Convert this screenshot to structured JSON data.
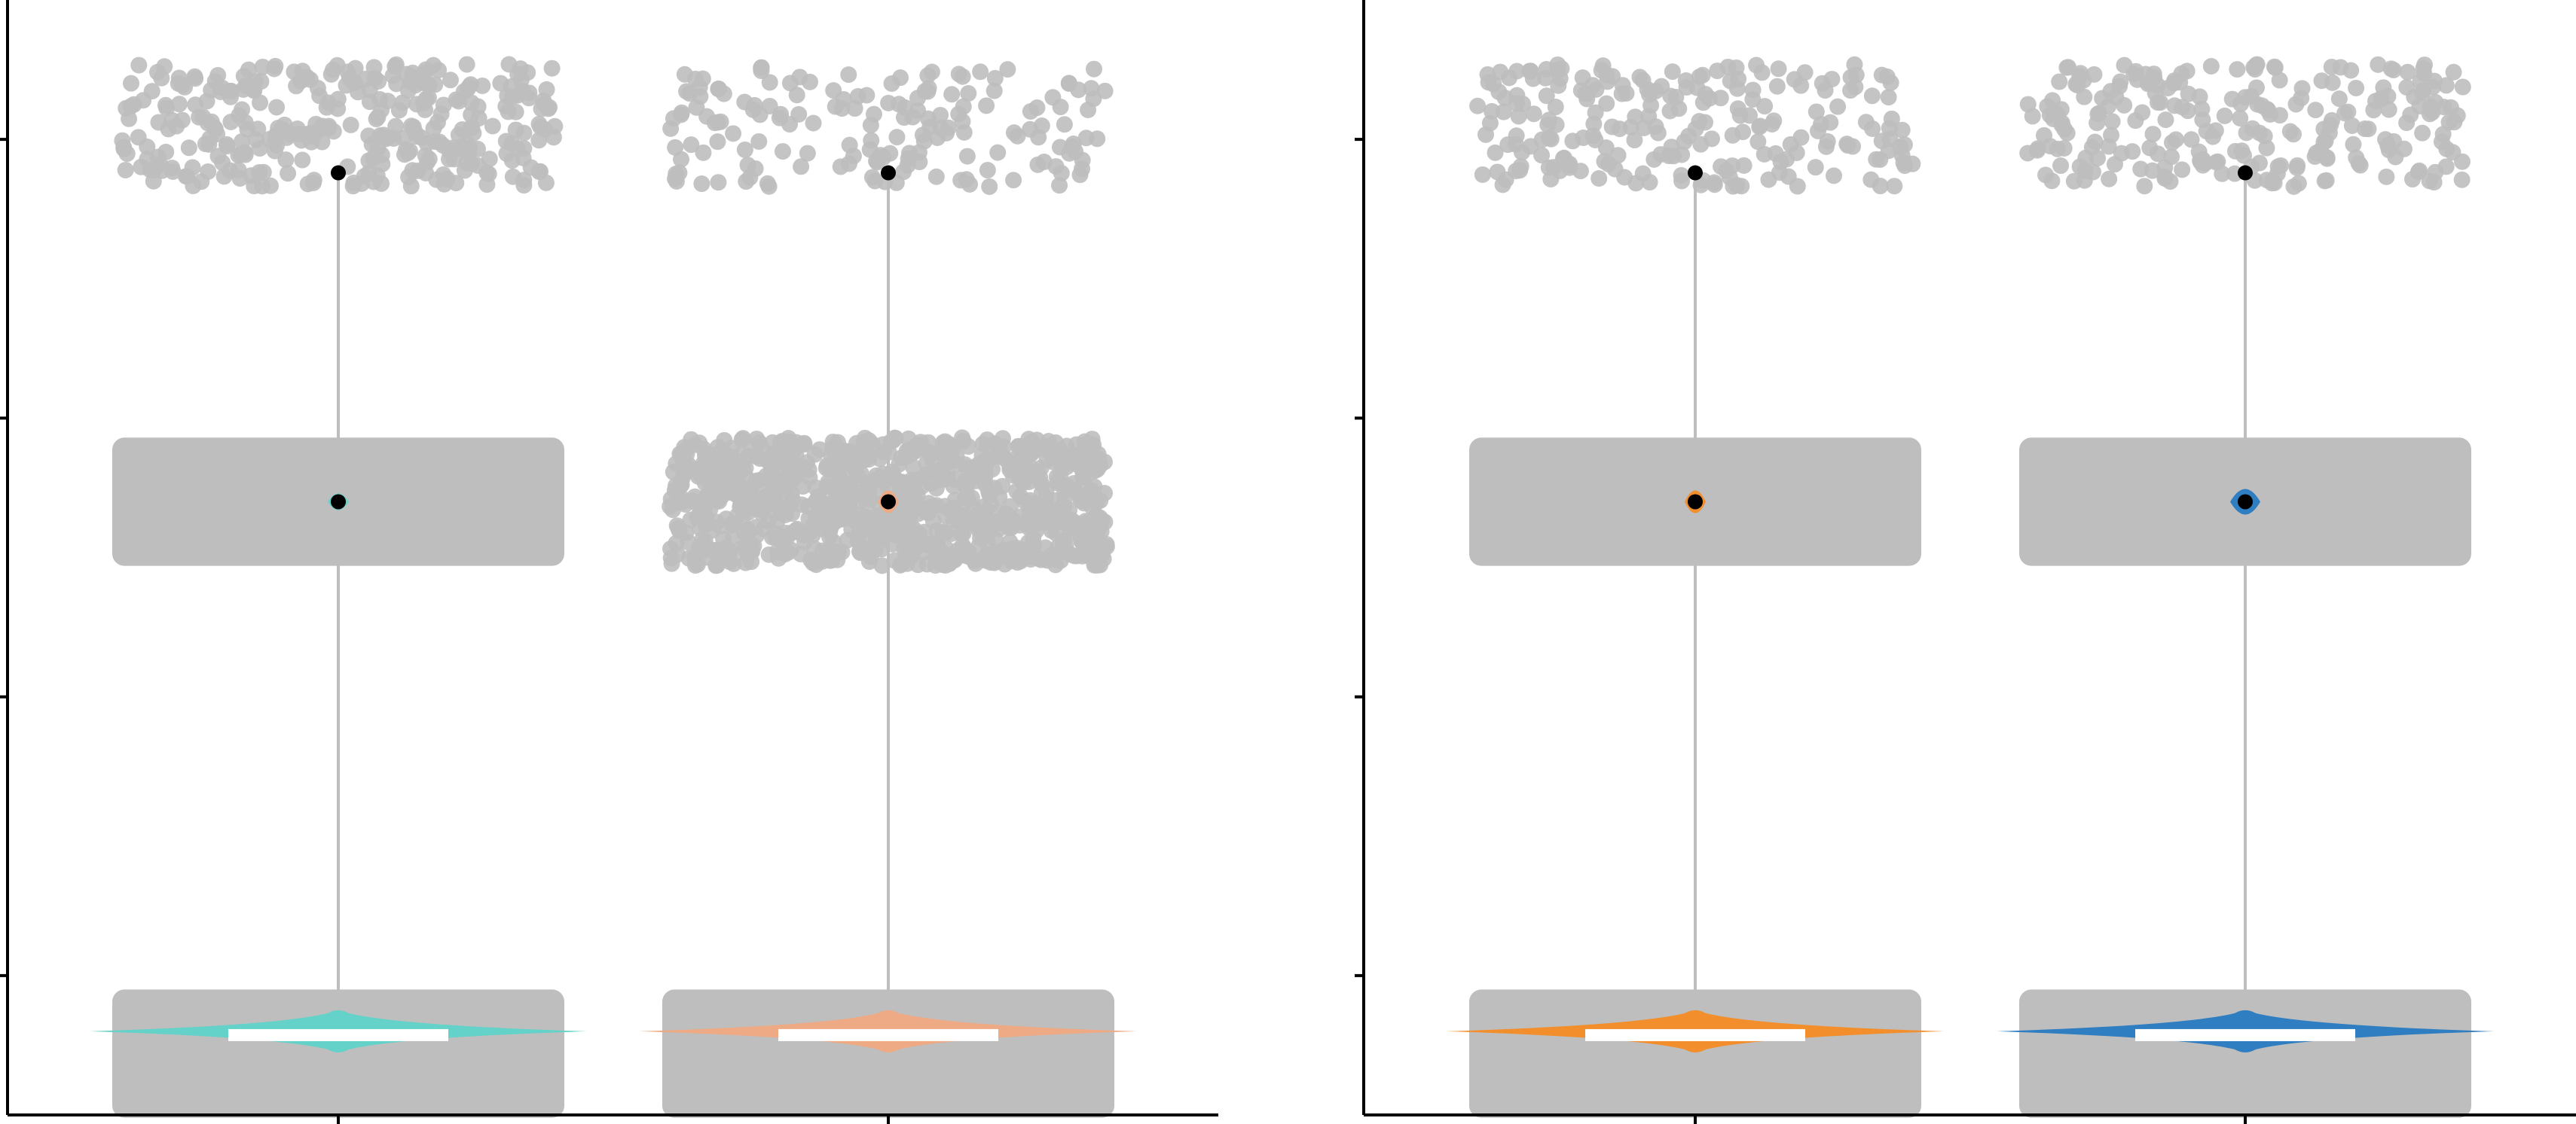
{
  "figure": {
    "background": "#ffffff",
    "point_color": "#bebebe",
    "line_color": "#bebebe",
    "axis_color": "#000000",
    "median_color": "#000000",
    "whisker_fill": "#ffffff"
  },
  "chart_data": [
    {
      "type": "scatter",
      "panel": "left",
      "title": "",
      "xlabel": "",
      "ylabel": "",
      "grid": false,
      "legend": "none",
      "ylim": [
        0,
        4
      ],
      "yticks": [
        0.5,
        1.5,
        2.5,
        3.5
      ],
      "ytick_labels": [],
      "xtick_labels": [],
      "groups": [
        {
          "position": 1,
          "color": "#64d2c8",
          "dense_clusters": [
            {
              "y_center": 0.22,
              "y_halfwidth": 0.23,
              "density": "solid"
            },
            {
              "y_center": 2.2,
              "y_halfwidth": 0.23,
              "density": "solid"
            }
          ],
          "sparse_clusters": [
            {
              "y_center": 3.55,
              "y_halfwidth": 0.22,
              "points": 340
            },
            {
              "y_center": 2.2,
              "y_halfwidth": 0,
              "points": 0
            }
          ],
          "medians": [
            0.3,
            2.2,
            3.38
          ],
          "violin_half_width": 0.45,
          "inner_whisker_half_width": 0.2
        },
        {
          "position": 2,
          "color": "#eeaa84",
          "dense_clusters": [
            {
              "y_center": 0.22,
              "y_halfwidth": 0.23,
              "density": "solid"
            }
          ],
          "sparse_clusters": [
            {
              "y_center": 3.55,
              "y_halfwidth": 0.22,
              "points": 170
            },
            {
              "y_center": 2.2,
              "y_halfwidth": 0.23,
              "points": 900
            }
          ],
          "medians": [
            0.3,
            2.2,
            3.38
          ],
          "violin_half_width": 0.45,
          "inner_whisker_half_width": 0.2
        }
      ]
    },
    {
      "type": "scatter",
      "panel": "right",
      "title": "",
      "xlabel": "",
      "ylabel": "",
      "grid": false,
      "legend": "none",
      "ylim": [
        0,
        4
      ],
      "yticks": [
        0.5,
        1.5,
        2.5,
        3.5
      ],
      "ytick_labels": [],
      "xtick_labels": [],
      "groups": [
        {
          "position": 1,
          "color": "#f28e2b",
          "dense_clusters": [
            {
              "y_center": 0.22,
              "y_halfwidth": 0.23,
              "density": "solid"
            },
            {
              "y_center": 2.2,
              "y_halfwidth": 0.23,
              "density": "solid"
            }
          ],
          "sparse_clusters": [
            {
              "y_center": 3.55,
              "y_halfwidth": 0.22,
              "points": 230
            }
          ],
          "medians": [
            0.3,
            2.2,
            3.38
          ],
          "violin_half_width": 0.45,
          "inner_whisker_half_width": 0.2
        },
        {
          "position": 2,
          "color": "#2e7ec1",
          "dense_clusters": [
            {
              "y_center": 0.22,
              "y_halfwidth": 0.23,
              "density": "solid"
            },
            {
              "y_center": 2.2,
              "y_halfwidth": 0.23,
              "density": "solid"
            }
          ],
          "sparse_clusters": [
            {
              "y_center": 3.55,
              "y_halfwidth": 0.22,
              "points": 250
            }
          ],
          "medians": [
            0.3,
            2.2,
            3.38
          ],
          "violin_half_width": 0.45,
          "inner_whisker_half_width": 0.2
        }
      ]
    }
  ]
}
